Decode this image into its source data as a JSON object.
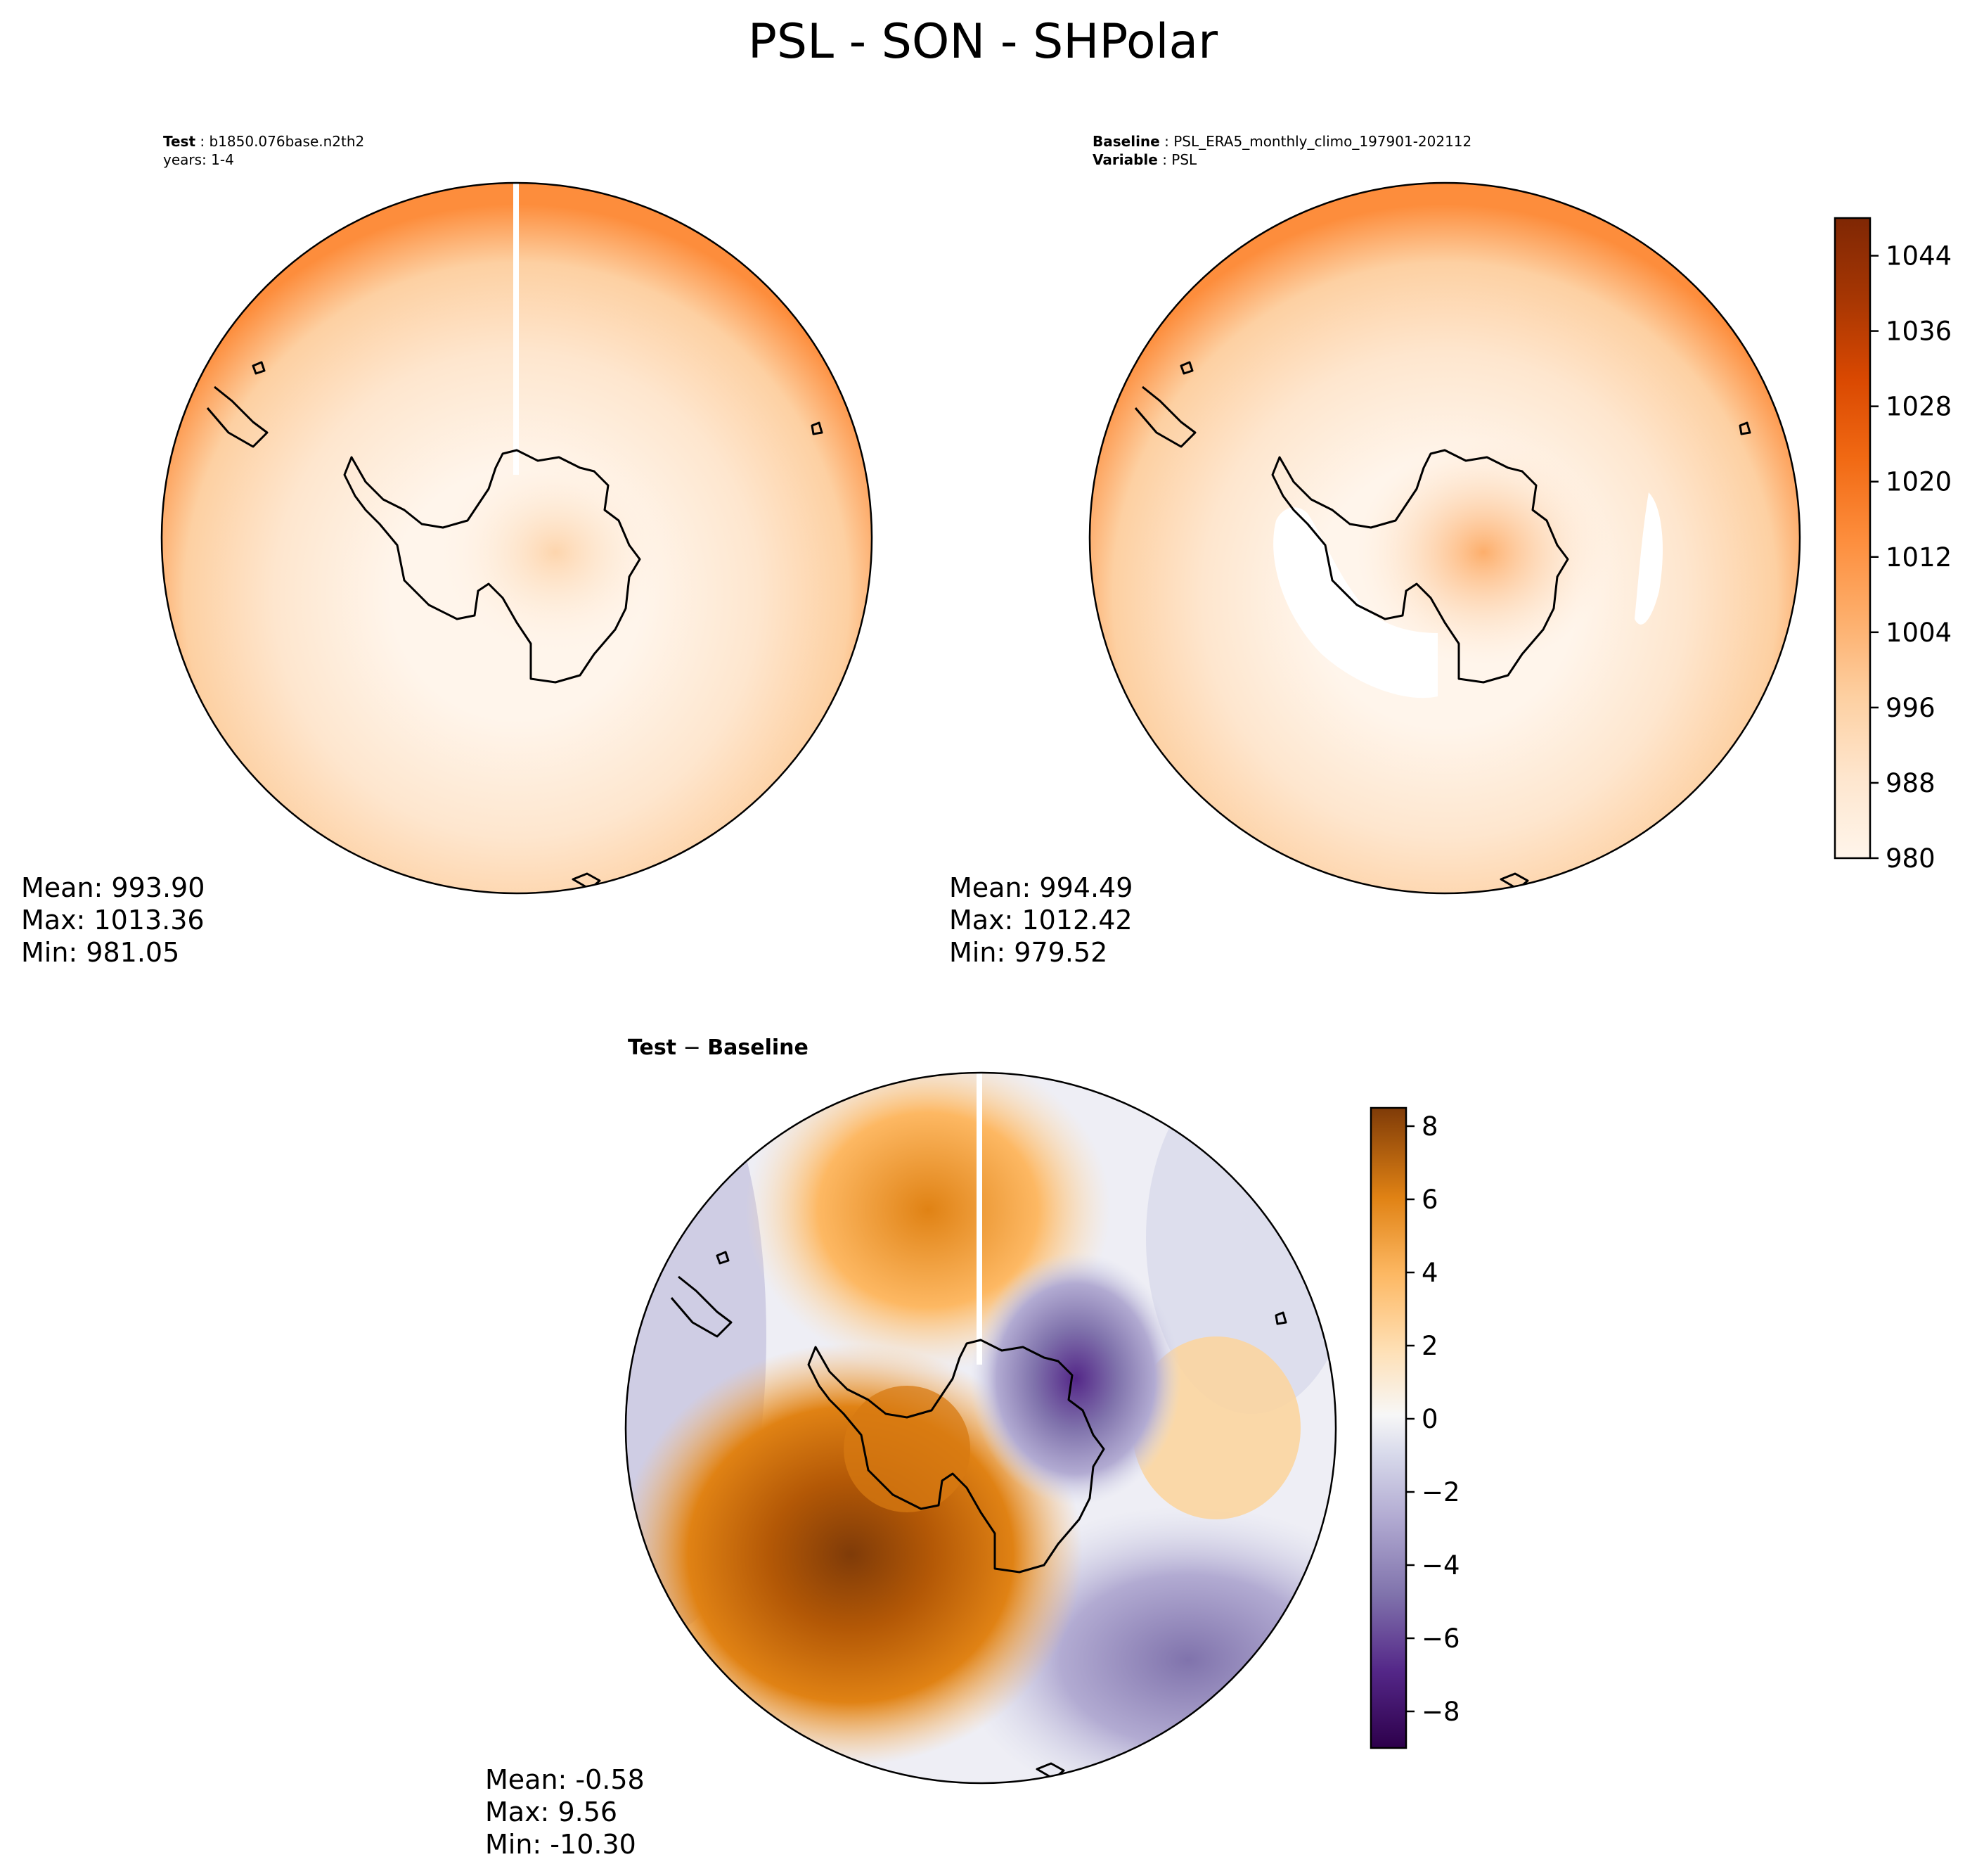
{
  "figure": {
    "title": "PSL - SON - SHPolar"
  },
  "colors": {
    "psl_ramp": [
      "#fff5eb",
      "#fee6ce",
      "#fdd0a2",
      "#fdae6b",
      "#fd8d3c",
      "#f16913",
      "#d94801",
      "#a63603",
      "#7f2704"
    ],
    "diff_ramp_neg": [
      "#2d004b",
      "#542788",
      "#8073ac",
      "#b2abd2",
      "#d8daeb",
      "#f7f7f7"
    ],
    "diff_ramp_pos": [
      "#f7f7f7",
      "#fee0b6",
      "#fdb863",
      "#e08214",
      "#b35806",
      "#7f3b08"
    ],
    "coastline": "#000000"
  },
  "chart_data": [
    {
      "type": "heatmap",
      "panel": "test",
      "projection": "south-polar-stereographic",
      "title_label": "Test",
      "title_value": "b1850.076base.n2th2",
      "subtitle": "years: 1-4",
      "variable": "PSL",
      "season": "SON",
      "mean_label": "Mean: 993.90",
      "max_label": "Max: 1013.36",
      "min_label": "Min: 981.05",
      "mean": 993.9,
      "max": 1013.36,
      "min": 981.05,
      "field": {
        "outer_edge": 1012,
        "ring_minimum": 984,
        "continent_interior": 998,
        "note": "Low pressure ring around Antarctica, rising to ~1010-1013 at the outer edge"
      }
    },
    {
      "type": "heatmap",
      "panel": "baseline",
      "projection": "south-polar-stereographic",
      "title_label": "Baseline",
      "title_value": "PSL_ERA5_monthly_climo_197901-202112",
      "subtitle_label": "Variable",
      "subtitle_value": "PSL",
      "mean_label": "Mean: 994.49",
      "max_label": "Max: 1012.42",
      "min_label": "Min: 979.52",
      "mean": 994.49,
      "max": 1012.42,
      "min": 979.52,
      "field": {
        "outer_edge": 1012,
        "ring_minimum": 980,
        "continent_interior": 1006,
        "note": "Deepest lows (<980) in Amundsen/Bellingshausen sector and near 80E"
      },
      "colorbar": {
        "vmin": 980,
        "vmax": 1048,
        "levels": 18,
        "ticks": [
          980,
          988,
          996,
          1004,
          1012,
          1020,
          1028,
          1036,
          1044
        ],
        "tick_labels": [
          "980",
          "988",
          "996",
          "1004",
          "1012",
          "1020",
          "1028",
          "1036",
          "1044"
        ]
      }
    },
    {
      "type": "heatmap",
      "panel": "difference",
      "projection": "south-polar-stereographic",
      "title": "Test − Baseline",
      "title_part1": "Test",
      "title_part2": "Baseline",
      "mean_label": "Mean: -0.58",
      "max_label": "Max:  9.56",
      "min_label": "Min: -10.30",
      "mean": -0.58,
      "max": 9.56,
      "min": -10.3,
      "field": {
        "positive_center_value": 8,
        "positive_north_value": 4,
        "negative_east_antarctica_value": -8,
        "negative_southeast_value": -5,
        "note": "Strong positive anomaly west of the Antarctic Peninsula; negative over East Antarctica and the southeast ocean"
      },
      "colorbar": {
        "vmin": -9,
        "vmax": 8.5,
        "ticks": [
          -8,
          -6,
          -4,
          -2,
          0,
          2,
          4,
          6,
          8
        ],
        "tick_labels": [
          "−8",
          "−6",
          "−4",
          "−2",
          "0",
          "2",
          "4",
          "6",
          "8"
        ]
      }
    }
  ]
}
